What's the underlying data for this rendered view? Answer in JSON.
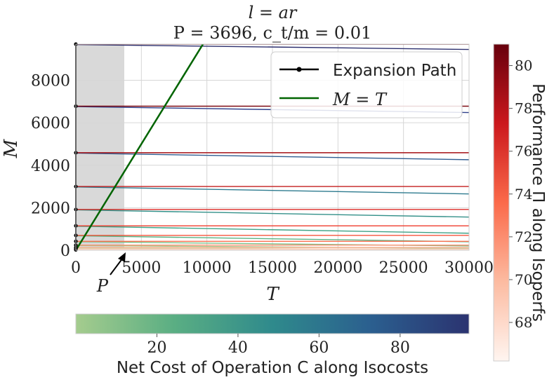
{
  "chart_data": {
    "type": "line",
    "title_line1": "l = ar",
    "title_line2": "P = 3696, c_t/m = 0.01",
    "xlabel": "T",
    "ylabel": "M",
    "xlim": [
      0,
      30000
    ],
    "ylim": [
      0,
      9700
    ],
    "x_ticks": [
      0,
      5000,
      10000,
      15000,
      20000,
      25000,
      30000
    ],
    "x_tick_labels": [
      "0",
      "5000",
      "10000",
      "15000",
      "20000",
      "25000",
      "30000"
    ],
    "y_ticks": [
      0,
      2000,
      4000,
      6000,
      8000
    ],
    "y_tick_labels": [
      "0",
      "2000",
      "4000",
      "6000",
      "8000"
    ],
    "grid": true,
    "shaded_region": {
      "x_from": 0,
      "x_to": 3696,
      "color": "#d9d9d9"
    },
    "annotation": {
      "text": "P",
      "points_to_x": 3696
    },
    "legend": {
      "placement": "top-right",
      "entries": [
        {
          "label": "Expansion Path",
          "color": "#000000",
          "style": "line-dot"
        },
        {
          "label": "M = T",
          "color": "#006400",
          "style": "line"
        }
      ]
    },
    "expansion_path": {
      "x": [
        0,
        0,
        0,
        0,
        0,
        0,
        0,
        0,
        0,
        0,
        0,
        0
      ],
      "y": [
        9700,
        6780,
        4590,
        3000,
        1920,
        1150,
        700,
        420,
        240,
        130,
        60,
        20
      ]
    },
    "m_equals_t": {
      "x": [
        0,
        9700
      ],
      "y": [
        0,
        9700
      ]
    },
    "isoperfs": [
      {
        "performance": 80.8,
        "y": 9700,
        "color": "#67000d"
      },
      {
        "performance": 80.0,
        "y": 6780,
        "color": "#7f0a12"
      },
      {
        "performance": 79.0,
        "y": 4590,
        "color": "#a50f15"
      },
      {
        "performance": 78.0,
        "y": 3000,
        "color": "#c41d1f"
      },
      {
        "performance": 77.0,
        "y": 1920,
        "color": "#dd2a25"
      },
      {
        "performance": 76.0,
        "y": 1150,
        "color": "#ef3b2c"
      },
      {
        "performance": 75.0,
        "y": 700,
        "color": "#f6553d"
      },
      {
        "performance": 74.0,
        "y": 420,
        "color": "#fb7050"
      },
      {
        "performance": 72.5,
        "y": 240,
        "color": "#fc9272"
      },
      {
        "performance": 71.0,
        "y": 130,
        "color": "#fcae91"
      },
      {
        "performance": 69.5,
        "y": 60,
        "color": "#fdcab5"
      },
      {
        "performance": 68.0,
        "y": 20,
        "color": "#fee0d2"
      }
    ],
    "isocosts": [
      {
        "cost": 95,
        "y_start": 9680,
        "y_end": 9450,
        "color": "#2c2f6e"
      },
      {
        "cost": 85,
        "y_start": 6760,
        "y_end": 6480,
        "color": "#2e3f8a"
      },
      {
        "cost": 70,
        "y_start": 4570,
        "y_end": 4260,
        "color": "#305d91"
      },
      {
        "cost": 55,
        "y_start": 2980,
        "y_end": 2650,
        "color": "#2e7b8f"
      },
      {
        "cost": 45,
        "y_start": 1900,
        "y_end": 1560,
        "color": "#339089"
      },
      {
        "cost": 35,
        "y_start": 1130,
        "y_end": 800,
        "color": "#3fa286"
      },
      {
        "cost": 25,
        "y_start": 680,
        "y_end": 400,
        "color": "#5cb183"
      },
      {
        "cost": 15,
        "y_start": 400,
        "y_end": 200,
        "color": "#7fbd86"
      },
      {
        "cost": 8,
        "y_start": 220,
        "y_end": 90,
        "color": "#a3c98e"
      },
      {
        "cost": 3,
        "y_start": 110,
        "y_end": 30,
        "color": "#bfd59a"
      }
    ],
    "colorbar_performance": {
      "label": "Performance Π along Isoperfs",
      "range": [
        66.2,
        81.0
      ],
      "ticks": [
        68,
        70,
        72,
        74,
        76,
        78,
        80
      ],
      "tick_labels": [
        "68",
        "70",
        "72",
        "74",
        "76",
        "78",
        "80"
      ],
      "colors": [
        "#fff5f0",
        "#fcbba1",
        "#fb6a4a",
        "#cb181d",
        "#67000d"
      ]
    },
    "colorbar_cost": {
      "label": "Net Cost of Operation C along Isocosts",
      "range": [
        0,
        97
      ],
      "ticks": [
        20,
        40,
        60,
        80
      ],
      "tick_labels": [
        "20",
        "40",
        "60",
        "80"
      ],
      "colors": [
        "#a5cc8e",
        "#5aae83",
        "#2f8a8c",
        "#2b5f8f",
        "#2b3370"
      ]
    }
  }
}
